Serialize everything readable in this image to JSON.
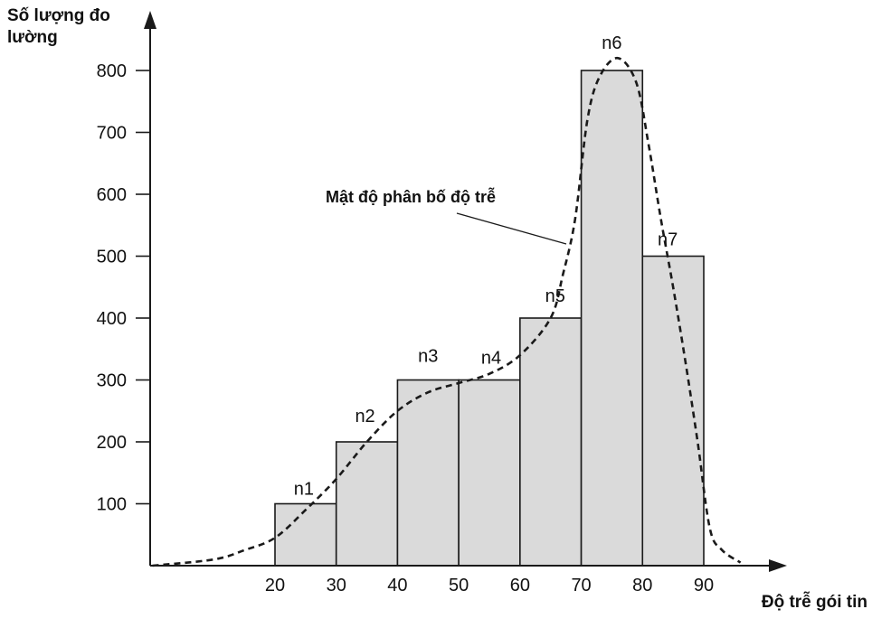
{
  "chart_data": {
    "type": "bar",
    "ylabel": "Số lượng đo lường",
    "xlabel": "Độ trễ gói tin",
    "annotation": "Mật độ phân bố độ trễ",
    "x_ticks": [
      20,
      30,
      40,
      50,
      60,
      70,
      80,
      90
    ],
    "y_ticks": [
      100,
      200,
      300,
      400,
      500,
      600,
      700,
      800
    ],
    "bins": [
      {
        "label": "n1",
        "x0": 20,
        "x1": 30,
        "value": 100
      },
      {
        "label": "n2",
        "x0": 30,
        "x1": 40,
        "value": 200
      },
      {
        "label": "n3",
        "x0": 40,
        "x1": 50,
        "value": 300
      },
      {
        "label": "n4",
        "x0": 50,
        "x1": 60,
        "value": 300
      },
      {
        "label": "n5",
        "x0": 60,
        "x1": 70,
        "value": 400
      },
      {
        "label": "n6",
        "x0": 70,
        "x1": 80,
        "value": 800
      },
      {
        "label": "n7",
        "x0": 80,
        "x1": 90,
        "value": 500
      }
    ],
    "density_curve": {
      "x": [
        0,
        10,
        15,
        20,
        25,
        30,
        35,
        40,
        45,
        50,
        55,
        60,
        65,
        67,
        69,
        71,
        73,
        76,
        79,
        81,
        83,
        85,
        87,
        89,
        91,
        93,
        96
      ],
      "y": [
        0,
        10,
        25,
        45,
        90,
        140,
        200,
        250,
        280,
        295,
        310,
        340,
        400,
        470,
        560,
        720,
        790,
        820,
        780,
        680,
        560,
        450,
        330,
        200,
        60,
        25,
        5
      ]
    },
    "xlim": [
      -20,
      102
    ],
    "ylim": [
      0,
      880
    ],
    "bar_fill": "#dadada",
    "grid": false
  }
}
